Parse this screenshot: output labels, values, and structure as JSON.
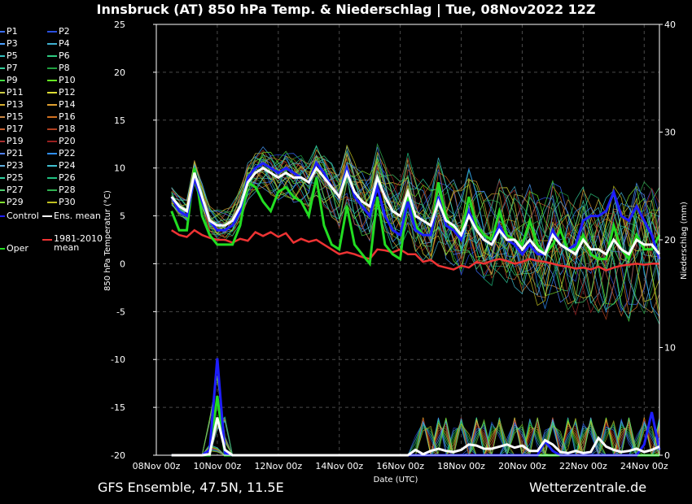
{
  "header": {
    "title": "Innsbruck  (AT)  850 hPa Temp. & Niederschlag | Tue, 08Nov2022 12Z"
  },
  "footer": {
    "left": "GFS Ensemble, 47.5N, 11.5E",
    "right": "Wetterzentrale.de"
  },
  "colors": {
    "background": "#000000",
    "grid": "#555555",
    "control": "#1e1eff",
    "ens_mean": "#ffffff",
    "oper": "#22dd22",
    "climo": "#ee3333"
  },
  "legend": [
    {
      "label": "P1",
      "color": "#3b6fff"
    },
    {
      "label": "P2",
      "color": "#2a50e0"
    },
    {
      "label": "P3",
      "color": "#4aa0ff"
    },
    {
      "label": "P4",
      "color": "#3fb0d0"
    },
    {
      "label": "P5",
      "color": "#33c0c0"
    },
    {
      "label": "P6",
      "color": "#2ecc80"
    },
    {
      "label": "P7",
      "color": "#33cc99"
    },
    {
      "label": "P8",
      "color": "#20a040"
    },
    {
      "label": "P9",
      "color": "#44dd44"
    },
    {
      "label": "P10",
      "color": "#66ee22"
    },
    {
      "label": "P11",
      "color": "#cccc44"
    },
    {
      "label": "P12",
      "color": "#dddd33"
    },
    {
      "label": "P13",
      "color": "#d8b030"
    },
    {
      "label": "P14",
      "color": "#e0a030"
    },
    {
      "label": "P15",
      "color": "#cc8844"
    },
    {
      "label": "P16",
      "color": "#d07020"
    },
    {
      "label": "P17",
      "color": "#c86030"
    },
    {
      "label": "P18",
      "color": "#b04020"
    },
    {
      "label": "P19",
      "color": "#aa3030"
    },
    {
      "label": "P20",
      "color": "#992020"
    },
    {
      "label": "P21",
      "color": "#5080ff"
    },
    {
      "label": "P22",
      "color": "#3090ff"
    },
    {
      "label": "P23",
      "color": "#60b0e0"
    },
    {
      "label": "P24",
      "color": "#40c0d0"
    },
    {
      "label": "P25",
      "color": "#30d0a0"
    },
    {
      "label": "P26",
      "color": "#20c080"
    },
    {
      "label": "P27",
      "color": "#50d070"
    },
    {
      "label": "P28",
      "color": "#30b050"
    },
    {
      "label": "P29",
      "color": "#80e030"
    },
    {
      "label": "P30",
      "color": "#c0c020"
    },
    {
      "label": "Control",
      "color": "#1e1eff"
    },
    {
      "label": "Ens. mean",
      "color": "#ffffff"
    },
    {
      "label": "Oper",
      "color": "#22dd22"
    },
    {
      "label": "1981-2010 mean",
      "color": "#ee3333"
    }
  ],
  "chart_data": {
    "type": "line",
    "title": "Innsbruck  (AT)  850 hPa Temp. & Niederschlag | Tue, 08Nov2022 12Z",
    "xlabel": "Date (UTC)",
    "ylabel": "850 hPa Temperatur (°C)",
    "y2label": "Niederschlag (mm)",
    "ylim": [
      -20,
      25
    ],
    "y2lim": [
      0,
      40
    ],
    "yticks": [
      25,
      20,
      15,
      10,
      5,
      0,
      -5,
      -10,
      -15,
      -20
    ],
    "y2ticks": [
      40,
      30,
      20,
      10,
      0
    ],
    "xticks": [
      "08Nov 00z",
      "10Nov 00z",
      "12Nov 00z",
      "14Nov 00z",
      "16Nov 00z",
      "18Nov 00z",
      "20Nov 00z",
      "22Nov 00z",
      "24Nov 00z"
    ],
    "xlim_days": [
      0,
      16.5
    ],
    "grid": true,
    "x_days": [
      0.5,
      0.75,
      1,
      1.25,
      1.5,
      1.75,
      2,
      2.25,
      2.5,
      2.75,
      3,
      3.25,
      3.5,
      3.75,
      4,
      4.25,
      4.5,
      4.75,
      5,
      5.25,
      5.5,
      5.75,
      6,
      6.25,
      6.5,
      6.75,
      7,
      7.25,
      7.5,
      7.75,
      8,
      8.25,
      8.5,
      8.75,
      9,
      9.25,
      9.5,
      9.75,
      10,
      10.25,
      10.5,
      10.75,
      11,
      11.25,
      11.5,
      11.75,
      12,
      12.25,
      12.5,
      12.75,
      13,
      13.25,
      13.5,
      13.75,
      14,
      14.25,
      14.5,
      14.75,
      15,
      15.25,
      15.5,
      15.75,
      16,
      16.25,
      16.5
    ],
    "series": [
      {
        "name": "Ens. mean",
        "values": [
          7,
          6,
          5.5,
          9.5,
          7,
          4.5,
          4,
          4,
          4.5,
          6,
          8.5,
          9.5,
          10,
          9.5,
          9,
          9.5,
          9,
          9,
          8.5,
          10,
          9,
          8,
          7,
          9.5,
          7.5,
          6.5,
          6,
          9,
          7,
          5.5,
          5,
          7.5,
          5,
          4.5,
          4,
          6.5,
          4.5,
          4,
          3,
          5,
          3.5,
          2.5,
          2,
          3.5,
          2.5,
          2.5,
          1.5,
          2.5,
          1.5,
          1,
          3,
          2,
          1.5,
          1,
          2.5,
          1.5,
          1.5,
          1,
          2.5,
          1.5,
          1,
          2.5,
          2,
          2,
          1
        ]
      },
      {
        "name": "Control",
        "values": [
          7,
          5.5,
          5,
          9,
          6.5,
          4.5,
          3.5,
          3.5,
          4,
          5.5,
          9,
          10,
          10.5,
          10,
          9.5,
          10,
          9.5,
          9,
          8.5,
          10.5,
          9.5,
          8,
          7,
          10,
          7,
          6,
          5,
          8,
          5,
          3.5,
          3,
          6.5,
          3.5,
          3,
          3,
          7,
          4,
          3.5,
          2.5,
          5.5,
          3.5,
          2.5,
          2,
          4,
          2.5,
          2,
          1,
          2,
          1,
          1,
          3.5,
          2,
          1.5,
          2,
          4.5,
          5,
          5,
          5.5,
          7.5,
          5,
          4.5,
          6,
          4.5,
          3,
          0.5
        ]
      },
      {
        "name": "Oper",
        "values": [
          5.5,
          3.5,
          3.5,
          10,
          5,
          3,
          2,
          2,
          2,
          4,
          8.5,
          8,
          6.5,
          5.5,
          7.5,
          8,
          7,
          6.5,
          5,
          9,
          4,
          2,
          1.5,
          6,
          2,
          1,
          0,
          7,
          2,
          1,
          0.5,
          7,
          4,
          3,
          3,
          8.5,
          5,
          3.5,
          3,
          7,
          4,
          3,
          2.5,
          5.5,
          3,
          2.5,
          2,
          4.5,
          2,
          1,
          2,
          3.5,
          1.5,
          1.5,
          3,
          1,
          0.5,
          0.5,
          4,
          1.5,
          0.5,
          3,
          1.5,
          1.5,
          3
        ]
      },
      {
        "name": "1981-2010 mean",
        "values": [
          3.5,
          3,
          2.8,
          3.5,
          3,
          2.7,
          2.5,
          2.5,
          2.2,
          2.6,
          2.4,
          3.3,
          2.9,
          3.3,
          2.8,
          3.2,
          2.2,
          2.6,
          2.3,
          2.5,
          2,
          1.5,
          1,
          1.2,
          1,
          0.7,
          0.5,
          1.5,
          1.4,
          1.2,
          1.5,
          1,
          1,
          0.2,
          0.4,
          -0.2,
          -0.4,
          -0.6,
          -0.2,
          -0.4,
          0.2,
          0,
          0.3,
          0.5,
          0.3,
          0,
          0.2,
          0.5,
          0.3,
          0.2,
          0,
          -0.2,
          -0.3,
          -0.5,
          -0.4,
          -0.6,
          -0.3,
          -0.7,
          -0.4,
          -0.2,
          -0.1,
          0,
          -0.1,
          0,
          0
        ]
      }
    ],
    "precip_mean_mm": [
      0,
      0,
      0,
      0,
      0,
      0.1,
      3.5,
      0.5,
      0,
      0,
      0,
      0,
      0,
      0,
      0,
      0,
      0,
      0,
      0,
      0,
      0,
      0,
      0,
      0,
      0,
      0,
      0,
      0,
      0,
      0,
      0,
      0,
      0.5,
      0.1,
      0.4,
      0.6,
      0.4,
      0.3,
      0.5,
      1,
      0.9,
      0.6,
      0.6,
      0.8,
      1,
      0.7,
      0.9,
      0.4,
      0.4,
      1.4,
      1,
      0.3,
      0.2,
      0.4,
      0.2,
      0.3,
      1.6,
      0.8,
      0.5,
      0.3,
      0.4,
      0.6,
      0.3,
      0.5,
      0.8
    ],
    "precip_control_mm": [
      0,
      0,
      0,
      0,
      0,
      0.5,
      9,
      0.2,
      0,
      0,
      0,
      0,
      0,
      0,
      0,
      0,
      0,
      0,
      0,
      0,
      0,
      0,
      0,
      0,
      0,
      0,
      0,
      0,
      0,
      0,
      0,
      0,
      0,
      0,
      0,
      0,
      0,
      0,
      0,
      0,
      0,
      0,
      0,
      0,
      0,
      0,
      0,
      0,
      0,
      1.3,
      0.4,
      0,
      0,
      0,
      0,
      0,
      0,
      0,
      0,
      0,
      0,
      0,
      1,
      4,
      0.5
    ],
    "precip_oper_mm": [
      0,
      0,
      0,
      0,
      0,
      0,
      5.5,
      0,
      0,
      0,
      0,
      0,
      0,
      0,
      0,
      0,
      0,
      0,
      0,
      0,
      0,
      0,
      0,
      0,
      0,
      0,
      0,
      0,
      0,
      0,
      0,
      0,
      0,
      0,
      0,
      0,
      0,
      0,
      0,
      0,
      0,
      0,
      0,
      0,
      0,
      0,
      0,
      0,
      0,
      0,
      0,
      0,
      0,
      0,
      0,
      0,
      0,
      0,
      0,
      0,
      0,
      0,
      0,
      0,
      0
    ]
  }
}
